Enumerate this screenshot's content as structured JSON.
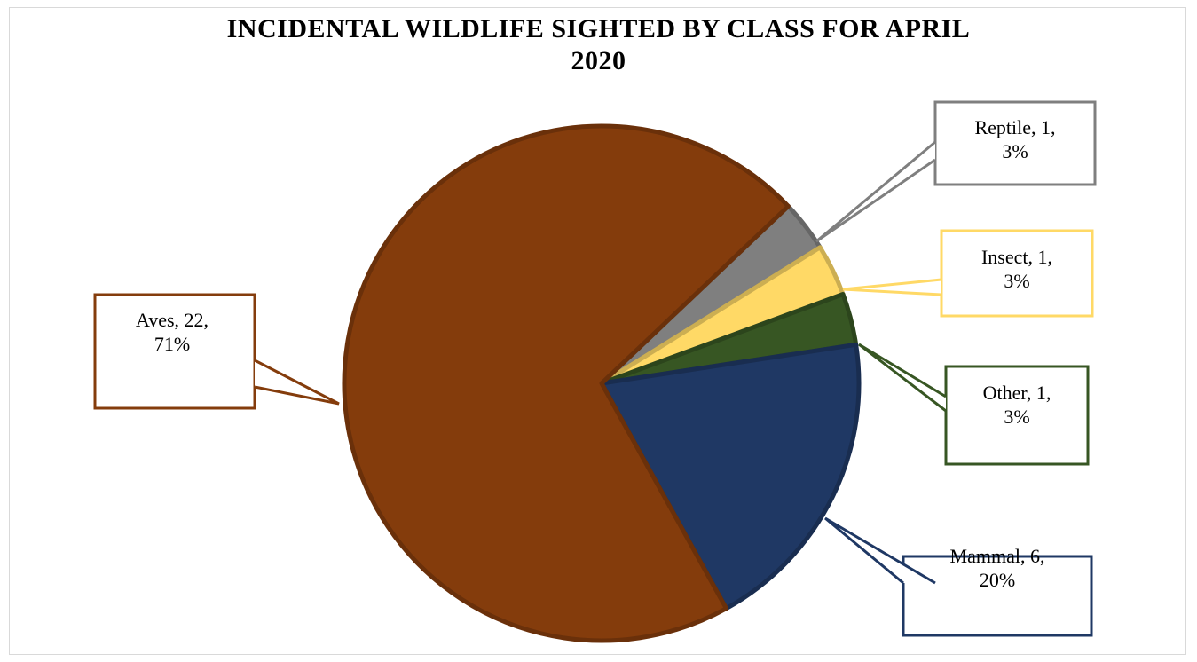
{
  "chart_data": {
    "type": "pie",
    "title_line1": "INCIDENTAL WILDLIFE SIGHTED BY CLASS FOR APRIL",
    "title_line2": "2020",
    "slices": [
      {
        "name": "Aves",
        "value": 22,
        "percent": "71%",
        "label_line1": "Aves, 22,",
        "label_line2": "71%",
        "color": "#843c0c"
      },
      {
        "name": "Reptile",
        "value": 1,
        "percent": "3%",
        "label_line1": "Reptile, 1,",
        "label_line2": "3%",
        "color": "#7f7f7f"
      },
      {
        "name": "Insect",
        "value": 1,
        "percent": "3%",
        "label_line1": "Insect, 1,",
        "label_line2": "3%",
        "color": "#ffd966"
      },
      {
        "name": "Other",
        "value": 1,
        "percent": "3%",
        "label_line1": "Other, 1,",
        "label_line2": "3%",
        "color": "#375623"
      },
      {
        "name": "Mammal",
        "value": 6,
        "percent": "20%",
        "label_line1": "Mammal, 6,",
        "label_line2": "20%",
        "color": "#1f3864"
      }
    ]
  }
}
